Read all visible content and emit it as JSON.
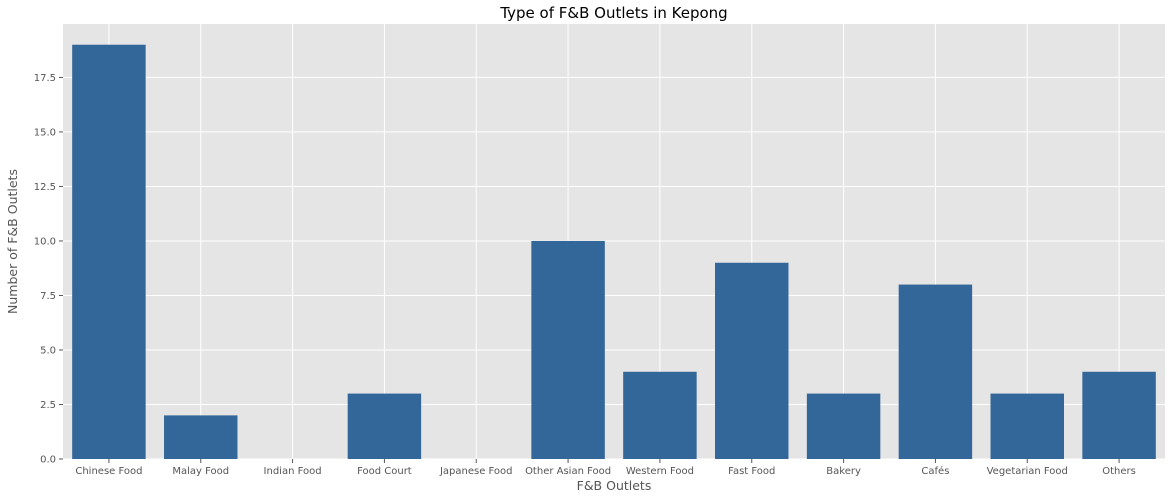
{
  "chart_data": {
    "type": "bar",
    "title": "Type of F&B Outlets in Kepong",
    "xlabel": "F&B Outlets",
    "ylabel": "Number of F&B Outlets",
    "categories": [
      "Chinese Food",
      "Malay Food",
      "Indian Food",
      "Food Court",
      "Japanese Food",
      "Other Asian Food",
      "Western Food",
      "Fast Food",
      "Bakery",
      "Cafés",
      "Vegetarian Food",
      "Others"
    ],
    "values": [
      19,
      2,
      0,
      3,
      0,
      10,
      4,
      9,
      3,
      8,
      3,
      4
    ],
    "ylim": [
      0,
      19.95
    ],
    "yticks": [
      0.0,
      2.5,
      5.0,
      7.5,
      10.0,
      12.5,
      15.0,
      17.5
    ],
    "ytick_labels": [
      "0.0",
      "2.5",
      "5.0",
      "7.5",
      "10.0",
      "12.5",
      "15.0",
      "17.5"
    ],
    "grid": true,
    "colors": {
      "bar": "#336699",
      "plot_background": "#e5e5e5",
      "grid": "#ffffff"
    }
  }
}
